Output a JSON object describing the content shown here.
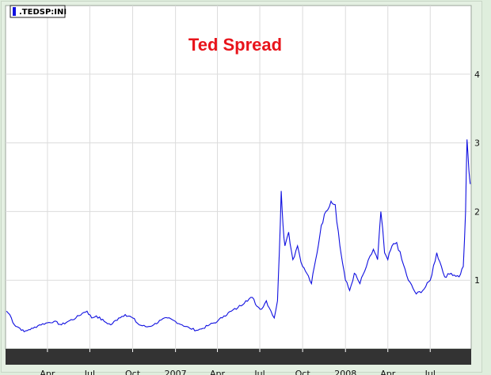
{
  "chart_data": {
    "type": "line",
    "title": "Ted Spread",
    "legend": ".TEDSP:IND",
    "legend_label_visible": ".TEDSP:INI",
    "series": [
      {
        "name": ".TEDSP:IND",
        "color": "#1010e0",
        "x": [
          "2006-01-03",
          "2006-01-10",
          "2006-01-20",
          "2006-02-01",
          "2006-02-10",
          "2006-02-20",
          "2006-03-01",
          "2006-03-15",
          "2006-04-01",
          "2006-04-15",
          "2006-05-01",
          "2006-05-15",
          "2006-06-01",
          "2006-06-15",
          "2006-06-25",
          "2006-07-05",
          "2006-07-15",
          "2006-08-01",
          "2006-08-15",
          "2006-09-01",
          "2006-09-15",
          "2006-10-01",
          "2006-10-15",
          "2006-11-01",
          "2006-11-15",
          "2006-12-01",
          "2006-12-15",
          "2007-01-01",
          "2007-01-15",
          "2007-02-01",
          "2007-02-15",
          "2007-03-01",
          "2007-03-15",
          "2007-04-01",
          "2007-04-15",
          "2007-05-01",
          "2007-05-15",
          "2007-06-01",
          "2007-06-15",
          "2007-06-25",
          "2007-07-05",
          "2007-07-15",
          "2007-07-25",
          "2007-08-01",
          "2007-08-08",
          "2007-08-12",
          "2007-08-16",
          "2007-08-20",
          "2007-08-24",
          "2007-09-01",
          "2007-09-10",
          "2007-09-20",
          "2007-10-01",
          "2007-10-10",
          "2007-10-20",
          "2007-11-01",
          "2007-11-10",
          "2007-11-20",
          "2007-12-01",
          "2007-12-10",
          "2007-12-20",
          "2008-01-01",
          "2008-01-10",
          "2008-01-20",
          "2008-02-01",
          "2008-02-15",
          "2008-03-01",
          "2008-03-10",
          "2008-03-17",
          "2008-03-25",
          "2008-04-01",
          "2008-04-10",
          "2008-04-20",
          "2008-05-01",
          "2008-05-15",
          "2008-06-01",
          "2008-06-15",
          "2008-07-01",
          "2008-07-15",
          "2008-07-25",
          "2008-08-01",
          "2008-08-15",
          "2008-09-01",
          "2008-09-10",
          "2008-09-15",
          "2008-09-18",
          "2008-09-22",
          "2008-09-25"
        ],
        "y": [
          0.55,
          0.5,
          0.35,
          0.3,
          0.25,
          0.28,
          0.3,
          0.35,
          0.38,
          0.4,
          0.35,
          0.4,
          0.45,
          0.52,
          0.55,
          0.45,
          0.48,
          0.4,
          0.35,
          0.45,
          0.5,
          0.45,
          0.35,
          0.32,
          0.35,
          0.42,
          0.45,
          0.4,
          0.35,
          0.3,
          0.27,
          0.3,
          0.35,
          0.4,
          0.48,
          0.55,
          0.6,
          0.7,
          0.75,
          0.62,
          0.58,
          0.7,
          0.55,
          0.45,
          0.7,
          1.4,
          2.3,
          1.8,
          1.5,
          1.7,
          1.3,
          1.5,
          1.2,
          1.1,
          0.95,
          1.4,
          1.8,
          2.0,
          2.15,
          2.1,
          1.5,
          1.0,
          0.85,
          1.1,
          0.95,
          1.2,
          1.45,
          1.3,
          2.0,
          1.4,
          1.3,
          1.5,
          1.55,
          1.3,
          1.0,
          0.8,
          0.85,
          1.0,
          1.4,
          1.2,
          1.05,
          1.1,
          1.05,
          1.2,
          2.0,
          3.05,
          2.6,
          2.4
        ]
      }
    ],
    "x_tick_labels": [
      "Apr",
      "Jul",
      "Oct",
      "2007",
      "Apr",
      "Jul",
      "Oct",
      "2008",
      "Apr",
      "Jul"
    ],
    "x_tick_dates": [
      "2006-04-01",
      "2006-07-01",
      "2006-10-01",
      "2007-01-01",
      "2007-04-01",
      "2007-07-01",
      "2007-10-01",
      "2008-01-01",
      "2008-04-01",
      "2008-07-01"
    ],
    "y_tick_labels": [
      "1",
      "2",
      "3",
      "4"
    ],
    "y_ticks": [
      1,
      2,
      3,
      4
    ],
    "ylim": [
      0,
      5
    ],
    "xlim": [
      "2006-01-01",
      "2008-09-27"
    ],
    "grid": true,
    "legend_position": "top-left",
    "y_axis_side": "right"
  }
}
